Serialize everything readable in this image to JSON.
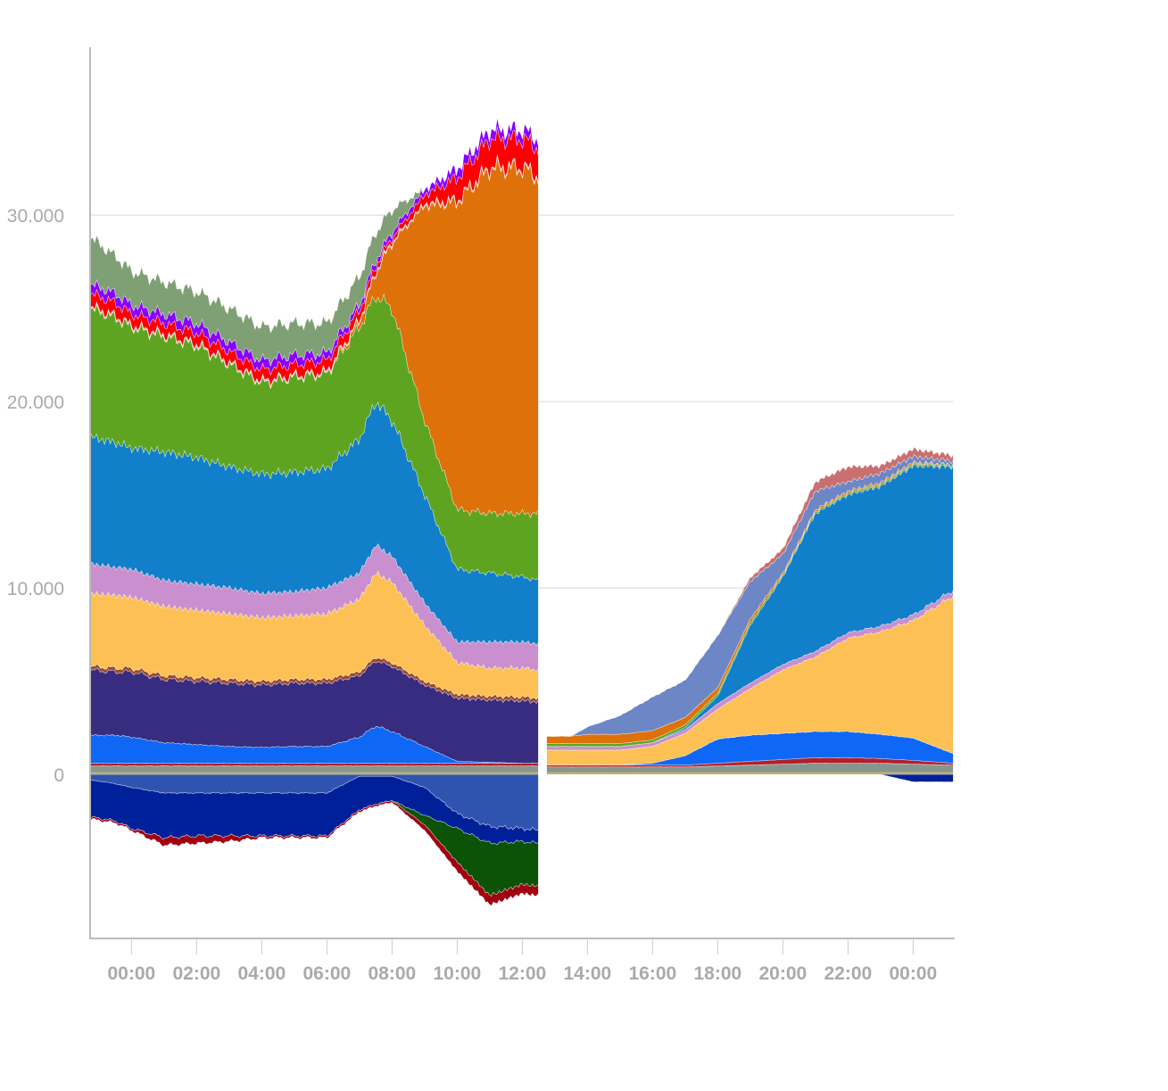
{
  "chart_data": {
    "type": "area",
    "stacked": true,
    "title": "",
    "xlabel": "",
    "ylabel": "",
    "xlim": [
      -1.27,
      25.25
    ],
    "ylim": [
      -8800,
      39000
    ],
    "grid": true,
    "yticks": [
      {
        "v": 0,
        "label": "0"
      },
      {
        "v": 10000,
        "label": "10.000"
      },
      {
        "v": 20000,
        "label": "20.000"
      },
      {
        "v": 30000,
        "label": "30.000"
      }
    ],
    "xticks": [
      {
        "v": 0,
        "label": "00:00"
      },
      {
        "v": 2,
        "label": "02:00"
      },
      {
        "v": 4,
        "label": "04:00"
      },
      {
        "v": 6,
        "label": "06:00"
      },
      {
        "v": 8,
        "label": "08:00"
      },
      {
        "v": 10,
        "label": "10:00"
      },
      {
        "v": 12,
        "label": "12:00"
      },
      {
        "v": 14,
        "label": "14:00"
      },
      {
        "v": 16,
        "label": "16:00"
      },
      {
        "v": 18,
        "label": "18:00"
      },
      {
        "v": 20,
        "label": "20:00"
      },
      {
        "v": 22,
        "label": "22:00"
      },
      {
        "v": 24,
        "label": "00:00"
      }
    ],
    "segments": [
      {
        "x": [
          -1.25,
          -0.5,
          0,
          1,
          2,
          3,
          4,
          5,
          6,
          7,
          7.5,
          8,
          9,
          10,
          11,
          12,
          12.5
        ],
        "positive": [
          {
            "color": "#B8922A",
            "values": [
              100,
              100,
              100,
              100,
              100,
              100,
              100,
              100,
              100,
              100,
              100,
              100,
              100,
              100,
              100,
              100,
              100
            ]
          },
          {
            "color": "#87968D",
            "values": [
              350,
              350,
              350,
              350,
              350,
              350,
              350,
              350,
              350,
              350,
              350,
              350,
              350,
              350,
              350,
              350,
              350
            ]
          },
          {
            "color": "#B0202A",
            "values": [
              150,
              150,
              150,
              150,
              150,
              150,
              150,
              150,
              150,
              150,
              150,
              150,
              150,
              150,
              150,
              150,
              150
            ]
          },
          {
            "color": "#0F67F5",
            "values": [
              1500,
              1500,
              1400,
              1100,
              1000,
              900,
              850,
              900,
              900,
              1400,
              2000,
              1700,
              900,
              100,
              50,
              0,
              0
            ]
          },
          {
            "color": "#372C80",
            "values": [
              3500,
              3400,
              3500,
              3400,
              3400,
              3400,
              3350,
              3400,
              3400,
              3300,
              3500,
              3500,
              3300,
              3400,
              3350,
              3350,
              3300
            ]
          },
          {
            "color": "#9A4A30",
            "values": [
              200,
              200,
              200,
              200,
              200,
              200,
              200,
              200,
              200,
              200,
              200,
              200,
              200,
              200,
              200,
              200,
              200
            ]
          },
          {
            "color": "#FCC054",
            "values": [
              3900,
              3900,
              3800,
              3700,
              3600,
              3500,
              3400,
              3400,
              3500,
              3900,
              4500,
              4300,
              3000,
              1700,
              1500,
              1550,
              1500
            ]
          },
          {
            "color": "#C98FCE",
            "values": [
              1600,
              1500,
              1500,
              1400,
              1400,
              1400,
              1300,
              1300,
              1400,
              1400,
              1500,
              1400,
              1200,
              1100,
              1400,
              1400,
              1400
            ]
          },
          {
            "color": "#117FC9",
            "values": [
              6800,
              6700,
              6500,
              6900,
              6800,
              6500,
              6400,
              6400,
              6400,
              7200,
              7700,
              7300,
              5800,
              3900,
              3700,
              3500,
              3400
            ]
          },
          {
            "color": "#5EA421",
            "values": [
              6900,
              6700,
              6500,
              6200,
              6000,
              5500,
              4900,
              5100,
              5100,
              6000,
              5700,
              6000,
              4000,
              3200,
              3200,
              3400,
              3600
            ]
          },
          {
            "color": "#DE710A",
            "values": [
              0,
              0,
              0,
              0,
              0,
              0,
              0,
              0,
              0,
              300,
              1200,
              3500,
              11500,
              16500,
              18500,
              18500,
              18000
            ]
          },
          {
            "color": "#F4B0B0",
            "values": [
              100,
              100,
              100,
              100,
              100,
              100,
              100,
              100,
              100,
              100,
              100,
              100,
              100,
              100,
              100,
              100,
              100
            ]
          },
          {
            "color": "#FF0000",
            "values": [
              700,
              700,
              600,
              600,
              600,
              600,
              600,
              600,
              600,
              500,
              300,
              200,
              500,
              1200,
              1500,
              1500,
              1500
            ]
          },
          {
            "color": "#8800FF",
            "values": [
              500,
              500,
              500,
              500,
              500,
              500,
              500,
              500,
              400,
              300,
              300,
              300,
              300,
              500,
              500,
              500,
              500
            ]
          },
          {
            "color": "#7F9F74",
            "values": [
              2500,
              2000,
              1800,
              1700,
              1700,
              1800,
              1800,
              1700,
              1600,
              1500,
              1500,
              1200,
              0,
              0,
              0,
              0,
              0
            ]
          }
        ],
        "negative": [
          {
            "color": "#2E54AF",
            "values": [
              -300,
              -500,
              -700,
              -1000,
              -1000,
              -1000,
              -1000,
              -1000,
              -1000,
              -100,
              -100,
              -100,
              -700,
              -2100,
              -2800,
              -2900,
              -3000
            ]
          },
          {
            "color": "#00209A",
            "values": [
              -2000,
              -2000,
              -2200,
              -2400,
              -2300,
              -2300,
              -2300,
              -2300,
              -2300,
              -1800,
              -1500,
              -1300,
              -1500,
              -800,
              -900,
              -700,
              -700
            ]
          },
          {
            "color": "#0B5306",
            "values": [
              0,
              0,
              0,
              0,
              0,
              0,
              0,
              0,
              0,
              0,
              0,
              0,
              -500,
              -1800,
              -2800,
              -2300,
              -2300
            ]
          },
          {
            "color": "#A00010",
            "values": [
              -100,
              -100,
              -100,
              -400,
              -400,
              -300,
              -100,
              -100,
              -100,
              -100,
              -100,
              -100,
              -300,
              -500,
              -500,
              -500,
              -500
            ]
          }
        ]
      },
      {
        "x": [
          12.75,
          13.5,
          14,
          15,
          16,
          17,
          18,
          19,
          20,
          21,
          22,
          23,
          24,
          25.25
        ],
        "positive": [
          {
            "color": "#B8922A",
            "values": [
              100,
              100,
              100,
              100,
              100,
              100,
              100,
              100,
              100,
              100,
              100,
              100,
              100,
              100
            ]
          },
          {
            "color": "#87968D",
            "values": [
              300,
              300,
              300,
              300,
              300,
              300,
              350,
              400,
              450,
              500,
              500,
              500,
              450,
              400
            ]
          },
          {
            "color": "#B0202A",
            "values": [
              100,
              100,
              100,
              100,
              100,
              100,
              150,
              200,
              250,
              300,
              300,
              250,
              200,
              100
            ]
          },
          {
            "color": "#0F67F5",
            "values": [
              0,
              0,
              0,
              0,
              100,
              500,
              1300,
              1400,
              1400,
              1400,
              1400,
              1300,
              1200,
              500
            ]
          },
          {
            "color": "#FCC054",
            "values": [
              800,
              800,
              800,
              800,
              900,
              1200,
              1600,
              2500,
              3400,
              4000,
              5000,
              5500,
              6300,
              8500
            ]
          },
          {
            "color": "#C98FCE",
            "values": [
              200,
              200,
              200,
              200,
              200,
              200,
              300,
              300,
              300,
              300,
              300,
              300,
              300,
              300
            ]
          },
          {
            "color": "#117FC9",
            "values": [
              0,
              0,
              0,
              0,
              0,
              100,
              400,
              3100,
              4700,
              7400,
              7400,
              7500,
              8000,
              6600
            ]
          },
          {
            "color": "#5EA421",
            "values": [
              150,
              150,
              150,
              150,
              150,
              150,
              150,
              150,
              100,
              100,
              100,
              100,
              100,
              100
            ]
          },
          {
            "color": "#DE710A",
            "values": [
              400,
              400,
              500,
              500,
              500,
              400,
              300,
              200,
              100,
              100,
              100,
              100,
              100,
              0
            ]
          },
          {
            "color": "#6C86C6",
            "values": [
              0,
              0,
              400,
              1000,
              1800,
              2000,
              2800,
              2000,
              1000,
              1000,
              500,
              500,
              300,
              200
            ]
          },
          {
            "color": "#C87070",
            "values": [
              0,
              0,
              0,
              0,
              0,
              0,
              0,
              200,
              300,
              500,
              800,
              400,
              400,
              300
            ]
          }
        ],
        "negative": [
          {
            "color": "#00209A",
            "values": [
              0,
              0,
              0,
              0,
              0,
              0,
              0,
              0,
              0,
              0,
              0,
              0,
              -400,
              -400
            ]
          }
        ]
      }
    ]
  }
}
